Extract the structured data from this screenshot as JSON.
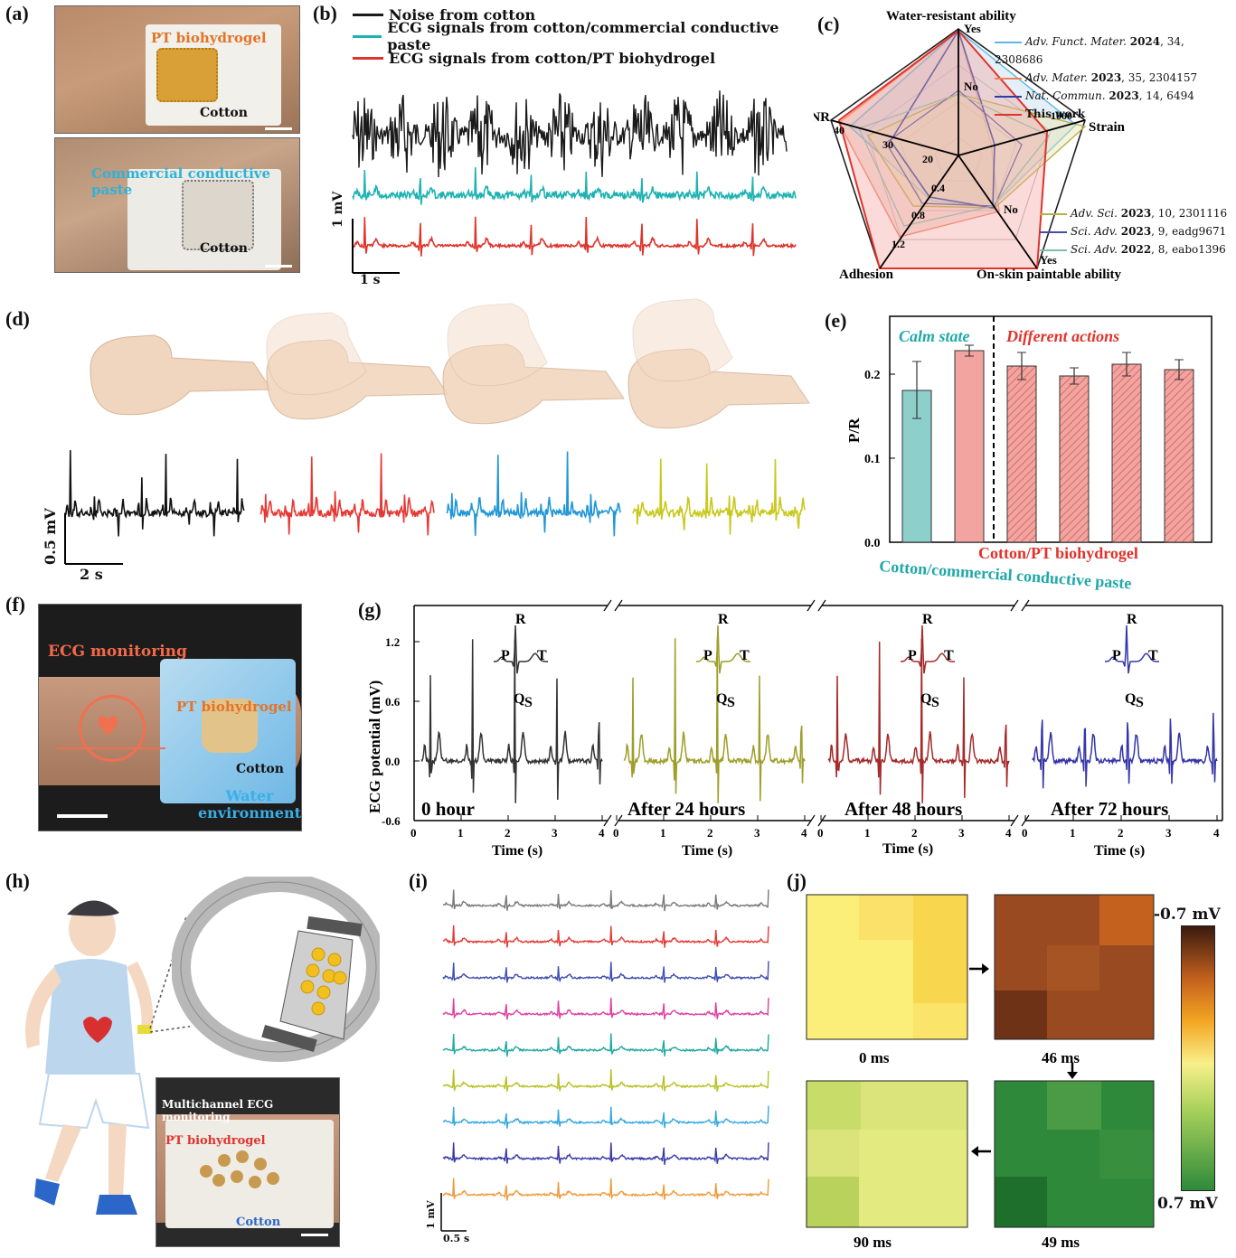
{
  "panels": {
    "a": {
      "label": "(a)",
      "top_label": "PT biohydrogel",
      "top_cotton": "Cotton",
      "bottom_label": "Commercial conductive paste",
      "bottom_cotton": "Cotton"
    },
    "b": {
      "label": "(b)",
      "legend": [
        {
          "name": "Noise from cotton",
          "color": "#1a1a1a"
        },
        {
          "name": "ECG signals from cotton/commercial conductive paste",
          "color": "#1fb2b2"
        },
        {
          "name": "ECG signals from cotton/PT biohydrogel",
          "color": "#e0332b"
        }
      ],
      "scale_y": "1 mV",
      "scale_x": "1 s"
    },
    "c": {
      "label": "(c)",
      "axes": [
        "Water-resistant ability",
        "Strain",
        "On-skin paintable ability",
        "Adhesion",
        "SNR"
      ],
      "ticks": {
        "water": [
          "No",
          "Yes"
        ],
        "strain": [
          "1000"
        ],
        "paint": [
          "No",
          "Yes"
        ],
        "adhesion": [
          "0.4",
          "0.8",
          "1.2"
        ],
        "snr": [
          "20",
          "30",
          "40"
        ]
      },
      "legend_top": [
        {
          "journal": "Adv. Funct. Mater.",
          "year": "2024",
          "rest": ", 34, 2308686",
          "color": "#5bb8e6"
        },
        {
          "journal": "Adv. Mater.",
          "year": "2023",
          "rest": ", 35, 2304157",
          "color": "#f08060"
        },
        {
          "journal": "Nat. Commun.",
          "year": "2023",
          "rest": ", 14, 6494",
          "color": "#2b3ea8"
        },
        {
          "journal": "",
          "year": "",
          "rest": "This work",
          "color": "#e0332b"
        }
      ],
      "legend_bottom": [
        {
          "journal": "Adv. Sci.",
          "year": "2023",
          "rest": ", 10, 2301116",
          "color": "#b8b04a"
        },
        {
          "journal": "Sci. Adv.",
          "year": "2023",
          "rest": ", 9, eadg9671",
          "color": "#4a4aa8"
        },
        {
          "journal": "Sci. Adv.",
          "year": "2022",
          "rest": ", 8, eabo1396",
          "color": "#7bbfb0"
        }
      ]
    },
    "d": {
      "label": "(d)",
      "scale_y": "0.5 mV",
      "scale_x": "2 s",
      "colors": [
        "#111111",
        "#e53935",
        "#2196d6",
        "#c8c81e"
      ]
    },
    "e": {
      "label": "(e)",
      "calm": "Calm state",
      "actions": "Different actions",
      "ylabel": "P/R",
      "yticks": [
        "0.0",
        "0.1",
        "0.2"
      ],
      "xlabel_red": "Cotton/PT biohydrogel",
      "xlabel_teal": "Cotton/commercial conductive paste"
    },
    "f": {
      "label": "(f)",
      "monitor": "ECG monitoring",
      "hydrogel": "PT biohydrogel",
      "cotton": "Cotton",
      "water": "Water\nenvironment"
    },
    "g": {
      "label": "(g)",
      "ylabel": "ECG potential (mV)",
      "yticks": [
        "1.2",
        "0.6",
        "0.0",
        "-0.6"
      ],
      "xlabel": "Time (s)",
      "xticks": [
        "0",
        "1",
        "2",
        "3",
        "4"
      ],
      "wave": {
        "P": "P",
        "Q": "Q",
        "R": "R",
        "S": "S",
        "T": "T"
      },
      "segments": [
        {
          "caption": "0 hour",
          "color": "#333333"
        },
        {
          "caption": "After 24 hours",
          "color": "#9e9e2a"
        },
        {
          "caption": "After 48 hours",
          "color": "#a52a2a"
        },
        {
          "caption": "After 72 hours",
          "color": "#3535a8"
        }
      ]
    },
    "h": {
      "label": "(h)",
      "photo_title": "Multichannel ECG monitoring",
      "hydrogel": "PT biohydrogel",
      "cotton": "Cotton"
    },
    "i": {
      "label": "(i)",
      "scale_y": "1 mV",
      "scale_x": "0.5 s",
      "colors": [
        "#7a7a7a",
        "#e53935",
        "#3f4fb0",
        "#e040a0",
        "#20a8a0",
        "#b8c020",
        "#34a8e0",
        "#3a3aa8",
        "#f09a3a"
      ]
    },
    "j": {
      "label": "(j)",
      "maps": [
        {
          "caption": "0 ms"
        },
        {
          "caption": "46 ms"
        },
        {
          "caption": "49 ms"
        },
        {
          "caption": "90 ms"
        }
      ],
      "cbar_top": "-0.7 mV",
      "cbar_bottom": "0.7 mV"
    }
  }
}
